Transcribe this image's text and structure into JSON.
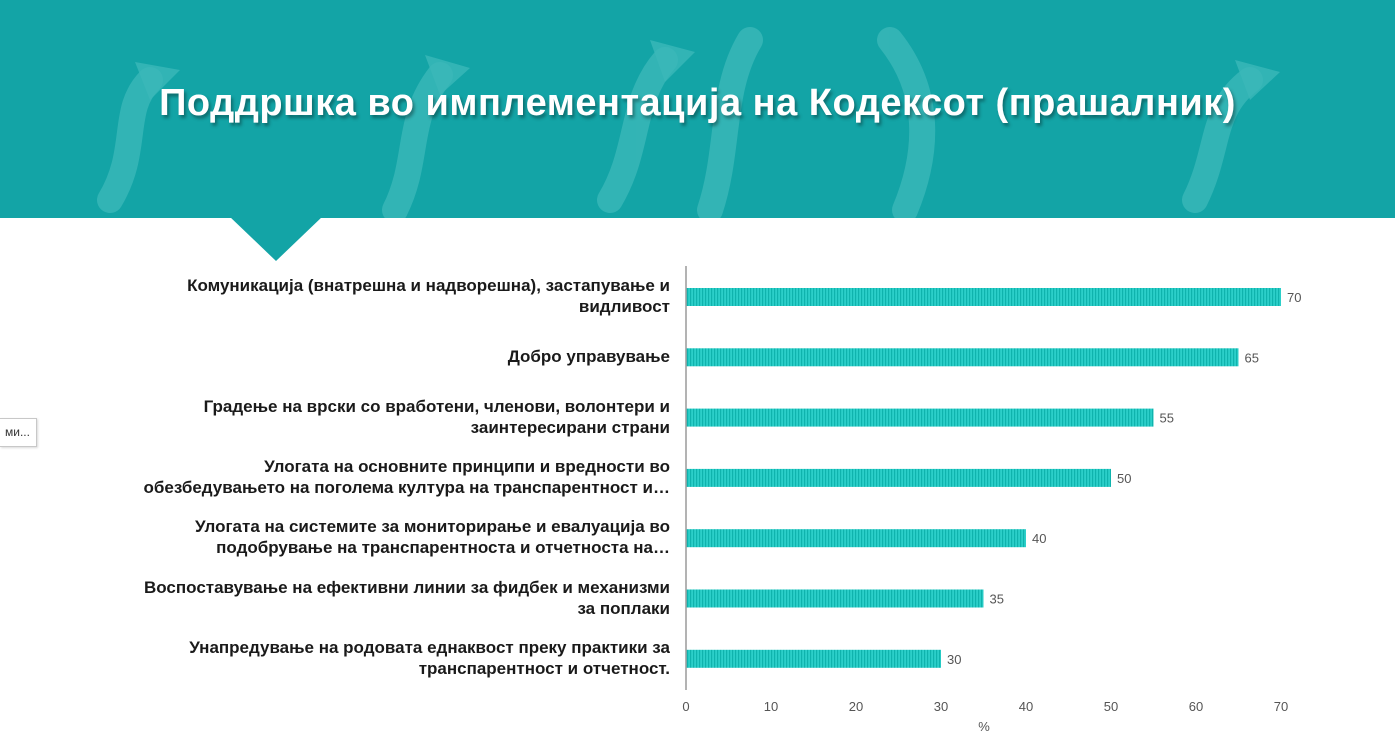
{
  "header": {
    "title": "Поддршка во имплементација на Кодексот (прашалник)"
  },
  "side_tab": {
    "label": "ми..."
  },
  "colors": {
    "header_bg": "#13a4a6",
    "bar": "#2ccfc9",
    "bar_stripe": "#0fb3ad",
    "axis": "#9a9a9a"
  },
  "chart_data": {
    "type": "bar",
    "orientation": "horizontal",
    "categories": [
      [
        "Комуникација (внатрешна и надворешна), застапување и",
        "видливост"
      ],
      [
        "Добро управување"
      ],
      [
        "Градење на врски со вработени, членови, волонтери и",
        "заинтересирани страни"
      ],
      [
        "Улогата на основните принципи и вредности во",
        "обезбедувањето на поголема култура на транспарентност и…"
      ],
      [
        "Улогата на системите за мониторирање и евалуација во",
        "подобрување на транспарентноста и отчетноста на…"
      ],
      [
        "Воспоставување на ефективни линии за фидбек и механизми",
        "за поплаки"
      ],
      [
        "Унапредување на родовата еднаквост преку практики за",
        "транспарентност и отчетност."
      ]
    ],
    "values": [
      70,
      65,
      55,
      50,
      40,
      35,
      30
    ],
    "data_labels": [
      "70",
      "65",
      "55",
      "50",
      "40",
      "35",
      "30"
    ],
    "xlabel": "%",
    "xlim": [
      0,
      70
    ],
    "xticks": [
      "0",
      "10",
      "20",
      "30",
      "40",
      "50",
      "60",
      "70"
    ],
    "grid": false,
    "legend": "none"
  }
}
